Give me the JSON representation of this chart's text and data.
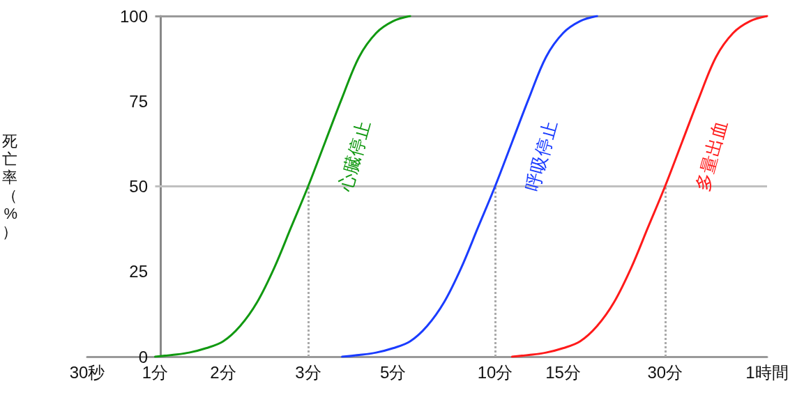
{
  "chart_data": {
    "type": "line",
    "ylabel": "死亡率（%）",
    "categories": [
      "30秒",
      null,
      null,
      null,
      "1分",
      null,
      null,
      null,
      "2分",
      null,
      null,
      null,
      null,
      "3分",
      null,
      null,
      null,
      null,
      "5分",
      null,
      null,
      null,
      null,
      null,
      "10分",
      null,
      null,
      null,
      "15分",
      null,
      null,
      null,
      null,
      null,
      "30分",
      null,
      null,
      null,
      null,
      null,
      "1時間"
    ],
    "ylim": [
      0,
      100
    ],
    "yticks": [
      0,
      25,
      50,
      75,
      100
    ],
    "grid": false,
    "legend": false,
    "marker": "none",
    "line_style": "solid",
    "series": [
      {
        "name": "心臓停止",
        "color": "#119911",
        "values": [
          null,
          null,
          null,
          null,
          0,
          0.5,
          1.2,
          2.5,
          4.5,
          9,
          16,
          26,
          38,
          50,
          63,
          76,
          88,
          95,
          98.5,
          100,
          null,
          null,
          null,
          null,
          null,
          null,
          null,
          null,
          null,
          null,
          null,
          null,
          null,
          null,
          null,
          null,
          null,
          null,
          null,
          null,
          null
        ]
      },
      {
        "name": "呼吸停止",
        "color": "#1a3cff",
        "values": [
          null,
          null,
          null,
          null,
          null,
          null,
          null,
          null,
          null,
          null,
          null,
          null,
          null,
          null,
          null,
          0,
          0.5,
          1.2,
          2.5,
          4.5,
          9,
          16,
          26,
          38,
          50,
          63,
          76,
          88,
          95,
          98.5,
          100,
          null,
          null,
          null,
          null,
          null,
          null,
          null,
          null,
          null,
          null
        ]
      },
      {
        "name": "多量出血",
        "color": "#ff1a1a",
        "values": [
          null,
          null,
          null,
          null,
          null,
          null,
          null,
          null,
          null,
          null,
          null,
          null,
          null,
          null,
          null,
          null,
          null,
          null,
          null,
          null,
          null,
          null,
          null,
          null,
          null,
          0,
          0.5,
          1.2,
          2.5,
          4.5,
          9,
          16,
          26,
          38,
          50,
          63,
          76,
          88,
          95,
          98.5,
          100
        ]
      }
    ],
    "ref_lines": [
      {
        "axis": "y",
        "value": 50,
        "color": "#c0c0c0",
        "line_style": "solid"
      },
      {
        "axis": "y",
        "value": 100,
        "color": "#999999",
        "line_style": "solid"
      },
      {
        "axis": "x",
        "value": "3分",
        "color": "#aaaaaa",
        "line_style": "dotted"
      },
      {
        "axis": "x",
        "value": "10分",
        "color": "#aaaaaa",
        "line_style": "dotted"
      },
      {
        "axis": "x",
        "value": "30分",
        "color": "#aaaaaa",
        "line_style": "dotted"
      }
    ]
  }
}
